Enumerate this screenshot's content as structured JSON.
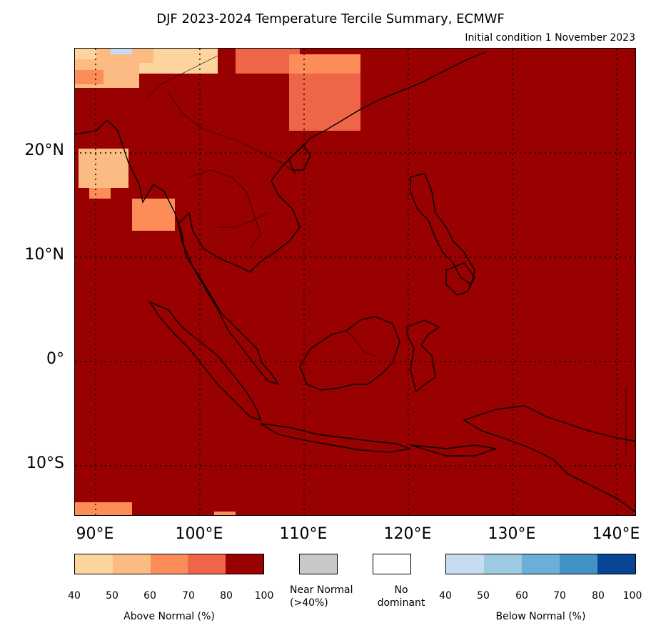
{
  "header": {
    "title": "DJF 2023-2024 Temperature Tercile Summary, ECMWF",
    "subtitle": "Initial condition 1 November 2023"
  },
  "map": {
    "lat_labels": [
      "20°N",
      "10°N",
      "0°",
      "10°S"
    ],
    "lon_labels": [
      "90°E",
      "100°E",
      "110°E",
      "120°E",
      "130°E",
      "140°E"
    ],
    "base_color": "#990000",
    "gridline_style": "dotted"
  },
  "legend": {
    "above_normal": {
      "label": "Above Normal (%)",
      "ticks": [
        "40",
        "50",
        "60",
        "70",
        "80",
        "100"
      ],
      "colors": [
        "#fdd49e",
        "#fdbb84",
        "#fc8d59",
        "#ef6548",
        "#990000"
      ]
    },
    "near_normal": {
      "label_line1": "Near Normal",
      "label_line2": "(>40%)",
      "color": "#c8c8c8"
    },
    "no_dominant": {
      "label_line1": "No",
      "label_line2": "dominant",
      "color": "#ffffff"
    },
    "below_normal": {
      "label": "Below Normal (%)",
      "ticks": [
        "40",
        "50",
        "60",
        "70",
        "80",
        "100"
      ],
      "colors": [
        "#c6dbef",
        "#9ecae1",
        "#6baed6",
        "#4292c6",
        "#084594"
      ]
    }
  }
}
